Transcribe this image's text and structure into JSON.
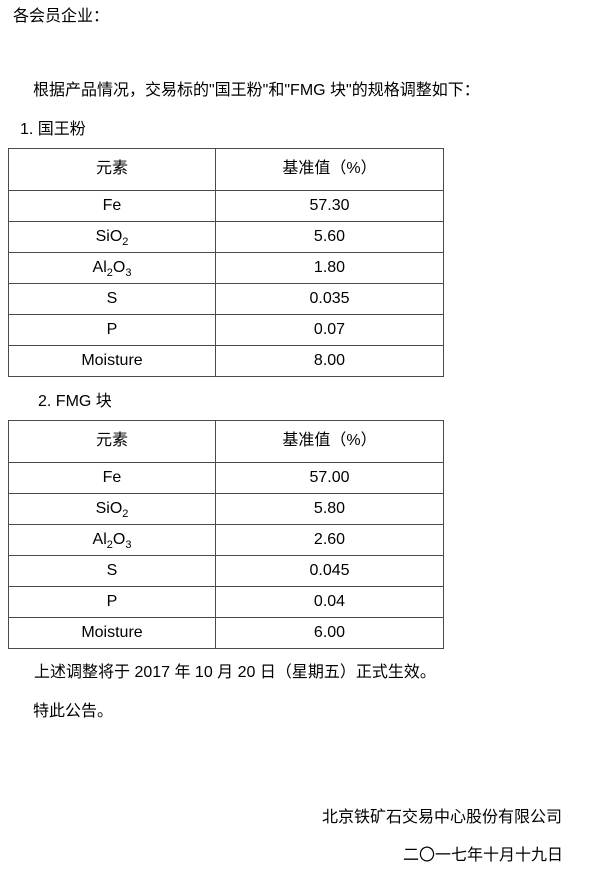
{
  "doc": {
    "salutation": "各会员企业：",
    "intro": "根据产品情况，交易标的\"国王粉\"和\"FMG 块\"的规格调整如下：",
    "section1_title": "1. 国王粉",
    "section2_title": "2. FMG 块",
    "effective_note": "上述调整将于 2017 年 10 月 20 日（星期五）正式生效。",
    "closing": "特此公告。",
    "signature_company": "北京铁矿石交易中心股份有限公司",
    "signature_date": "二〇一七年十月十九日"
  },
  "tables": [
    {
      "name": "国王粉",
      "headers": [
        "元素",
        "基准值（%）"
      ],
      "rows": [
        {
          "pre": "Fe",
          "value": "57.30"
        },
        {
          "pre": "SiO",
          "sub1": "2",
          "value": "5.60"
        },
        {
          "pre": "Al",
          "sub1": "2",
          "mid": "O",
          "sub2": "3",
          "value": "1.80"
        },
        {
          "pre": "S",
          "value": "0.035"
        },
        {
          "pre": "P",
          "value": "0.07"
        },
        {
          "pre": "Moisture",
          "value": "8.00"
        }
      ]
    },
    {
      "name": "FMG 块",
      "headers": [
        "元素",
        "基准值（%）"
      ],
      "rows": [
        {
          "pre": "Fe",
          "value": "57.00"
        },
        {
          "pre": "SiO",
          "sub1": "2",
          "value": "5.80"
        },
        {
          "pre": "Al",
          "sub1": "2",
          "mid": "O",
          "sub2": "3",
          "value": "2.60"
        },
        {
          "pre": "S",
          "value": "0.045"
        },
        {
          "pre": "P",
          "value": "0.04"
        },
        {
          "pre": "Moisture",
          "value": "6.00"
        }
      ]
    }
  ]
}
